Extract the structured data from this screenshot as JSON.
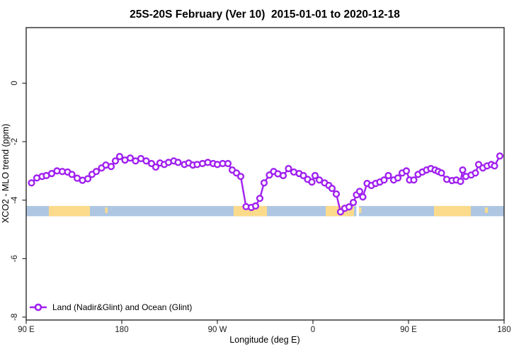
{
  "chart_data": {
    "type": "line",
    "title": "25S-20S February (Ver 10)  2015-01-01 to 2020-12-18",
    "xlabel": "Longitude (deg E)",
    "ylabel": "XCO2 - MLO trend (ppm)",
    "xlim": [
      90,
      540
    ],
    "ylim": [
      -8.1,
      1.9
    ],
    "grid": false,
    "x_ticks": [
      {
        "lon": 90,
        "label": "90 E"
      },
      {
        "lon": 180,
        "label": "180"
      },
      {
        "lon": 270,
        "label": "90 W"
      },
      {
        "lon": 360,
        "label": "0"
      },
      {
        "lon": 450,
        "label": "90 E"
      },
      {
        "lon": 540,
        "label": "180"
      }
    ],
    "y_ticks": [
      {
        "v": 0,
        "label": "0"
      },
      {
        "v": -2,
        "label": "-2"
      },
      {
        "v": -4,
        "label": "-4"
      },
      {
        "v": -6,
        "label": "-6"
      },
      {
        "v": -8,
        "label": "-8"
      }
    ],
    "series": [
      {
        "name": "Land (Nadir&Glint) and Ocean (Glint)",
        "color": "#A020F0",
        "marker": "open-circle",
        "points": [
          [
            95,
            -3.41
          ],
          [
            100,
            -3.24
          ],
          [
            105,
            -3.19
          ],
          [
            109,
            -3.16
          ],
          [
            114,
            -3.09
          ],
          [
            119,
            -3.0
          ],
          [
            124,
            -3.02
          ],
          [
            129,
            -3.04
          ],
          [
            133,
            -3.12
          ],
          [
            138,
            -3.25
          ],
          [
            143,
            -3.32
          ],
          [
            148,
            -3.27
          ],
          [
            152,
            -3.12
          ],
          [
            156,
            -3.02
          ],
          [
            161,
            -2.9
          ],
          [
            165,
            -2.8
          ],
          [
            170,
            -2.85
          ],
          [
            174,
            -2.66
          ],
          [
            178,
            -2.51
          ],
          [
            183,
            -2.63
          ],
          [
            188,
            -2.56
          ],
          [
            193,
            -2.66
          ],
          [
            198,
            -2.58
          ],
          [
            203,
            -2.66
          ],
          [
            208,
            -2.75
          ],
          [
            212,
            -2.87
          ],
          [
            216,
            -2.73
          ],
          [
            220,
            -2.78
          ],
          [
            224,
            -2.71
          ],
          [
            229,
            -2.66
          ],
          [
            233,
            -2.71
          ],
          [
            239,
            -2.78
          ],
          [
            243,
            -2.73
          ],
          [
            247,
            -2.8
          ],
          [
            251,
            -2.78
          ],
          [
            256,
            -2.75
          ],
          [
            261,
            -2.71
          ],
          [
            266,
            -2.75
          ],
          [
            270,
            -2.78
          ],
          [
            275,
            -2.75
          ],
          [
            280,
            -2.75
          ],
          [
            284,
            -2.97
          ],
          [
            288,
            -3.07
          ],
          [
            292,
            -3.19
          ],
          [
            297,
            -4.22
          ],
          [
            302,
            -4.25
          ],
          [
            306,
            -4.2
          ],
          [
            310,
            -3.94
          ],
          [
            314,
            -3.41
          ],
          [
            319,
            -3.14
          ],
          [
            323,
            -3.02
          ],
          [
            327,
            -3.1
          ],
          [
            332,
            -3.16
          ],
          [
            337,
            -2.92
          ],
          [
            342,
            -3.04
          ],
          [
            347,
            -3.09
          ],
          [
            351,
            -3.16
          ],
          [
            355,
            -3.29
          ],
          [
            359,
            -3.38
          ],
          [
            362,
            -3.16
          ],
          [
            366,
            -3.31
          ],
          [
            371,
            -3.41
          ],
          [
            375,
            -3.5
          ],
          [
            378,
            -3.6
          ],
          [
            382,
            -3.79
          ],
          [
            386,
            -4.4
          ],
          [
            390,
            -4.28
          ],
          [
            394,
            -4.23
          ],
          [
            398,
            -4.08
          ],
          [
            401,
            -3.82
          ],
          [
            404,
            -3.7
          ],
          [
            407,
            -3.89
          ],
          [
            411,
            -3.43
          ],
          [
            415,
            -3.5
          ],
          [
            419,
            -3.43
          ],
          [
            423,
            -3.38
          ],
          [
            427,
            -3.31
          ],
          [
            431,
            -3.16
          ],
          [
            436,
            -3.31
          ],
          [
            440,
            -3.24
          ],
          [
            444,
            -3.07
          ],
          [
            448,
            -3.0
          ],
          [
            451,
            -3.31
          ],
          [
            455,
            -3.31
          ],
          [
            459,
            -3.12
          ],
          [
            463,
            -3.04
          ],
          [
            467,
            -2.97
          ],
          [
            471,
            -2.92
          ],
          [
            475,
            -2.97
          ],
          [
            478,
            -3.02
          ],
          [
            481,
            -3.07
          ],
          [
            486,
            -3.29
          ],
          [
            491,
            -3.33
          ],
          [
            495,
            -3.31
          ],
          [
            499,
            -3.36
          ],
          [
            501,
            -2.97
          ],
          [
            504,
            -3.19
          ],
          [
            509,
            -3.14
          ],
          [
            513,
            -3.07
          ],
          [
            516,
            -2.78
          ],
          [
            520,
            -2.9
          ],
          [
            524,
            -2.83
          ],
          [
            528,
            -2.78
          ],
          [
            531,
            -2.83
          ],
          [
            536,
            -2.49
          ]
        ]
      }
    ],
    "surface_band": {
      "description": "ocean/land surface-type strip",
      "value_top": -4.2,
      "value_bottom": -4.55,
      "ocean_color": "#AEC6E2",
      "land_color": "#FBDB8B",
      "land_segments": [
        {
          "from": 111.3,
          "to": 150.0,
          "minor": false
        },
        {
          "from": 164.3,
          "to": 166.7,
          "minor": true
        },
        {
          "from": 285.3,
          "to": 316.7,
          "minor": false
        },
        {
          "from": 372.0,
          "to": 398.7,
          "minor": false
        },
        {
          "from": 403.3,
          "to": 405.5,
          "minor": true
        },
        {
          "from": 474.0,
          "to": 508.7,
          "minor": false
        },
        {
          "from": 522.0,
          "to": 524.7,
          "minor": true
        }
      ],
      "gaps": [
        {
          "from": 400.9,
          "to": 403.3
        }
      ]
    },
    "legend": {
      "label": "Land (Nadir&Glint) and Ocean (Glint)",
      "marker": "open-circle",
      "color": "#A020F0",
      "position": "bottom-left"
    }
  }
}
